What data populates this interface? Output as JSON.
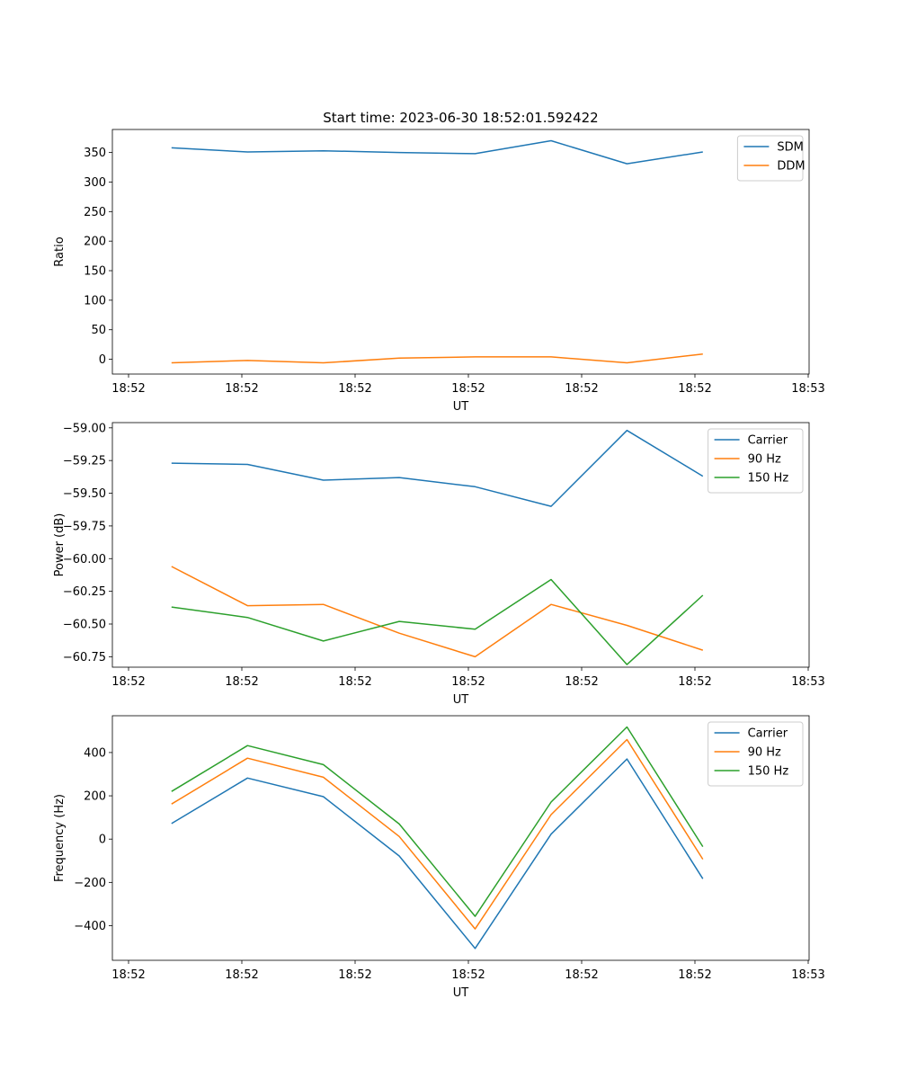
{
  "title": "Start time: 2023-06-30 18:52:01.592422",
  "chart_data": [
    {
      "type": "line",
      "title": "Start time: 2023-06-30 18:52:01.592422",
      "xlabel": "UT",
      "ylabel": "Ratio",
      "x_ticks": [
        "18:52",
        "18:52",
        "18:52",
        "18:52",
        "18:52",
        "18:52",
        "18:53"
      ],
      "x": [
        1,
        2,
        3,
        4,
        5,
        6,
        7,
        8
      ],
      "xlim": [
        0.22,
        9.4
      ],
      "ylim": [
        -25,
        389
      ],
      "y_ticks": [
        0,
        50,
        100,
        150,
        200,
        250,
        300,
        350
      ],
      "y_tick_labels": [
        "0",
        "50",
        "100",
        "150",
        "200",
        "250",
        "300",
        "350"
      ],
      "legend_position": "top-right",
      "grid": false,
      "series": [
        {
          "name": "SDM",
          "color": "#1f77b4",
          "values": [
            358,
            351,
            353,
            350,
            348,
            370,
            331,
            351
          ]
        },
        {
          "name": "DDM",
          "color": "#ff7f0e",
          "values": [
            -6,
            -2,
            -6,
            2,
            4,
            4,
            -6,
            9
          ]
        }
      ]
    },
    {
      "type": "line",
      "xlabel": "UT",
      "ylabel": "Power (dB)",
      "x_ticks": [
        "18:52",
        "18:52",
        "18:52",
        "18:52",
        "18:52",
        "18:52",
        "18:53"
      ],
      "x": [
        1,
        2,
        3,
        4,
        5,
        6,
        7,
        8
      ],
      "xlim": [
        0.22,
        9.4
      ],
      "ylim": [
        -60.83,
        -58.96
      ],
      "y_ticks": [
        -60.75,
        -60.5,
        -60.25,
        -60.0,
        -59.75,
        -59.5,
        -59.25,
        -59.0
      ],
      "y_tick_labels": [
        "−60.75",
        "−60.50",
        "−60.25",
        "−60.00",
        "−59.75",
        "−59.50",
        "−59.25",
        "−59.00"
      ],
      "legend_position": "top-right",
      "grid": false,
      "series": [
        {
          "name": "Carrier",
          "color": "#1f77b4",
          "values": [
            -59.27,
            -59.28,
            -59.4,
            -59.38,
            -59.45,
            -59.6,
            -59.02,
            -59.37
          ]
        },
        {
          "name": "90 Hz",
          "color": "#ff7f0e",
          "values": [
            -60.06,
            -60.36,
            -60.35,
            -60.57,
            -60.75,
            -60.35,
            -60.51,
            -60.7
          ]
        },
        {
          "name": "150 Hz",
          "color": "#2ca02c",
          "values": [
            -60.37,
            -60.45,
            -60.63,
            -60.48,
            -60.54,
            -60.16,
            -60.81,
            -60.28
          ]
        }
      ]
    },
    {
      "type": "line",
      "xlabel": "UT",
      "ylabel": "Frequency (Hz)",
      "x_ticks": [
        "18:52",
        "18:52",
        "18:52",
        "18:52",
        "18:52",
        "18:52",
        "18:53"
      ],
      "x": [
        1,
        2,
        3,
        4,
        5,
        6,
        7,
        8
      ],
      "xlim": [
        0.22,
        9.4
      ],
      "ylim": [
        -560,
        570
      ],
      "y_ticks": [
        -400,
        -200,
        0,
        200,
        400
      ],
      "y_tick_labels": [
        "−400",
        "−200",
        "0",
        "200",
        "400"
      ],
      "legend_position": "top-right",
      "grid": false,
      "series": [
        {
          "name": "Carrier",
          "color": "#1f77b4",
          "values": [
            72,
            282,
            196,
            -78,
            -505,
            23,
            370,
            -183
          ]
        },
        {
          "name": "90 Hz",
          "color": "#ff7f0e",
          "values": [
            162,
            374,
            286,
            12,
            -415,
            113,
            460,
            -93
          ]
        },
        {
          "name": "150 Hz",
          "color": "#2ca02c",
          "values": [
            220,
            432,
            344,
            70,
            -357,
            171,
            518,
            -35
          ]
        }
      ]
    }
  ]
}
